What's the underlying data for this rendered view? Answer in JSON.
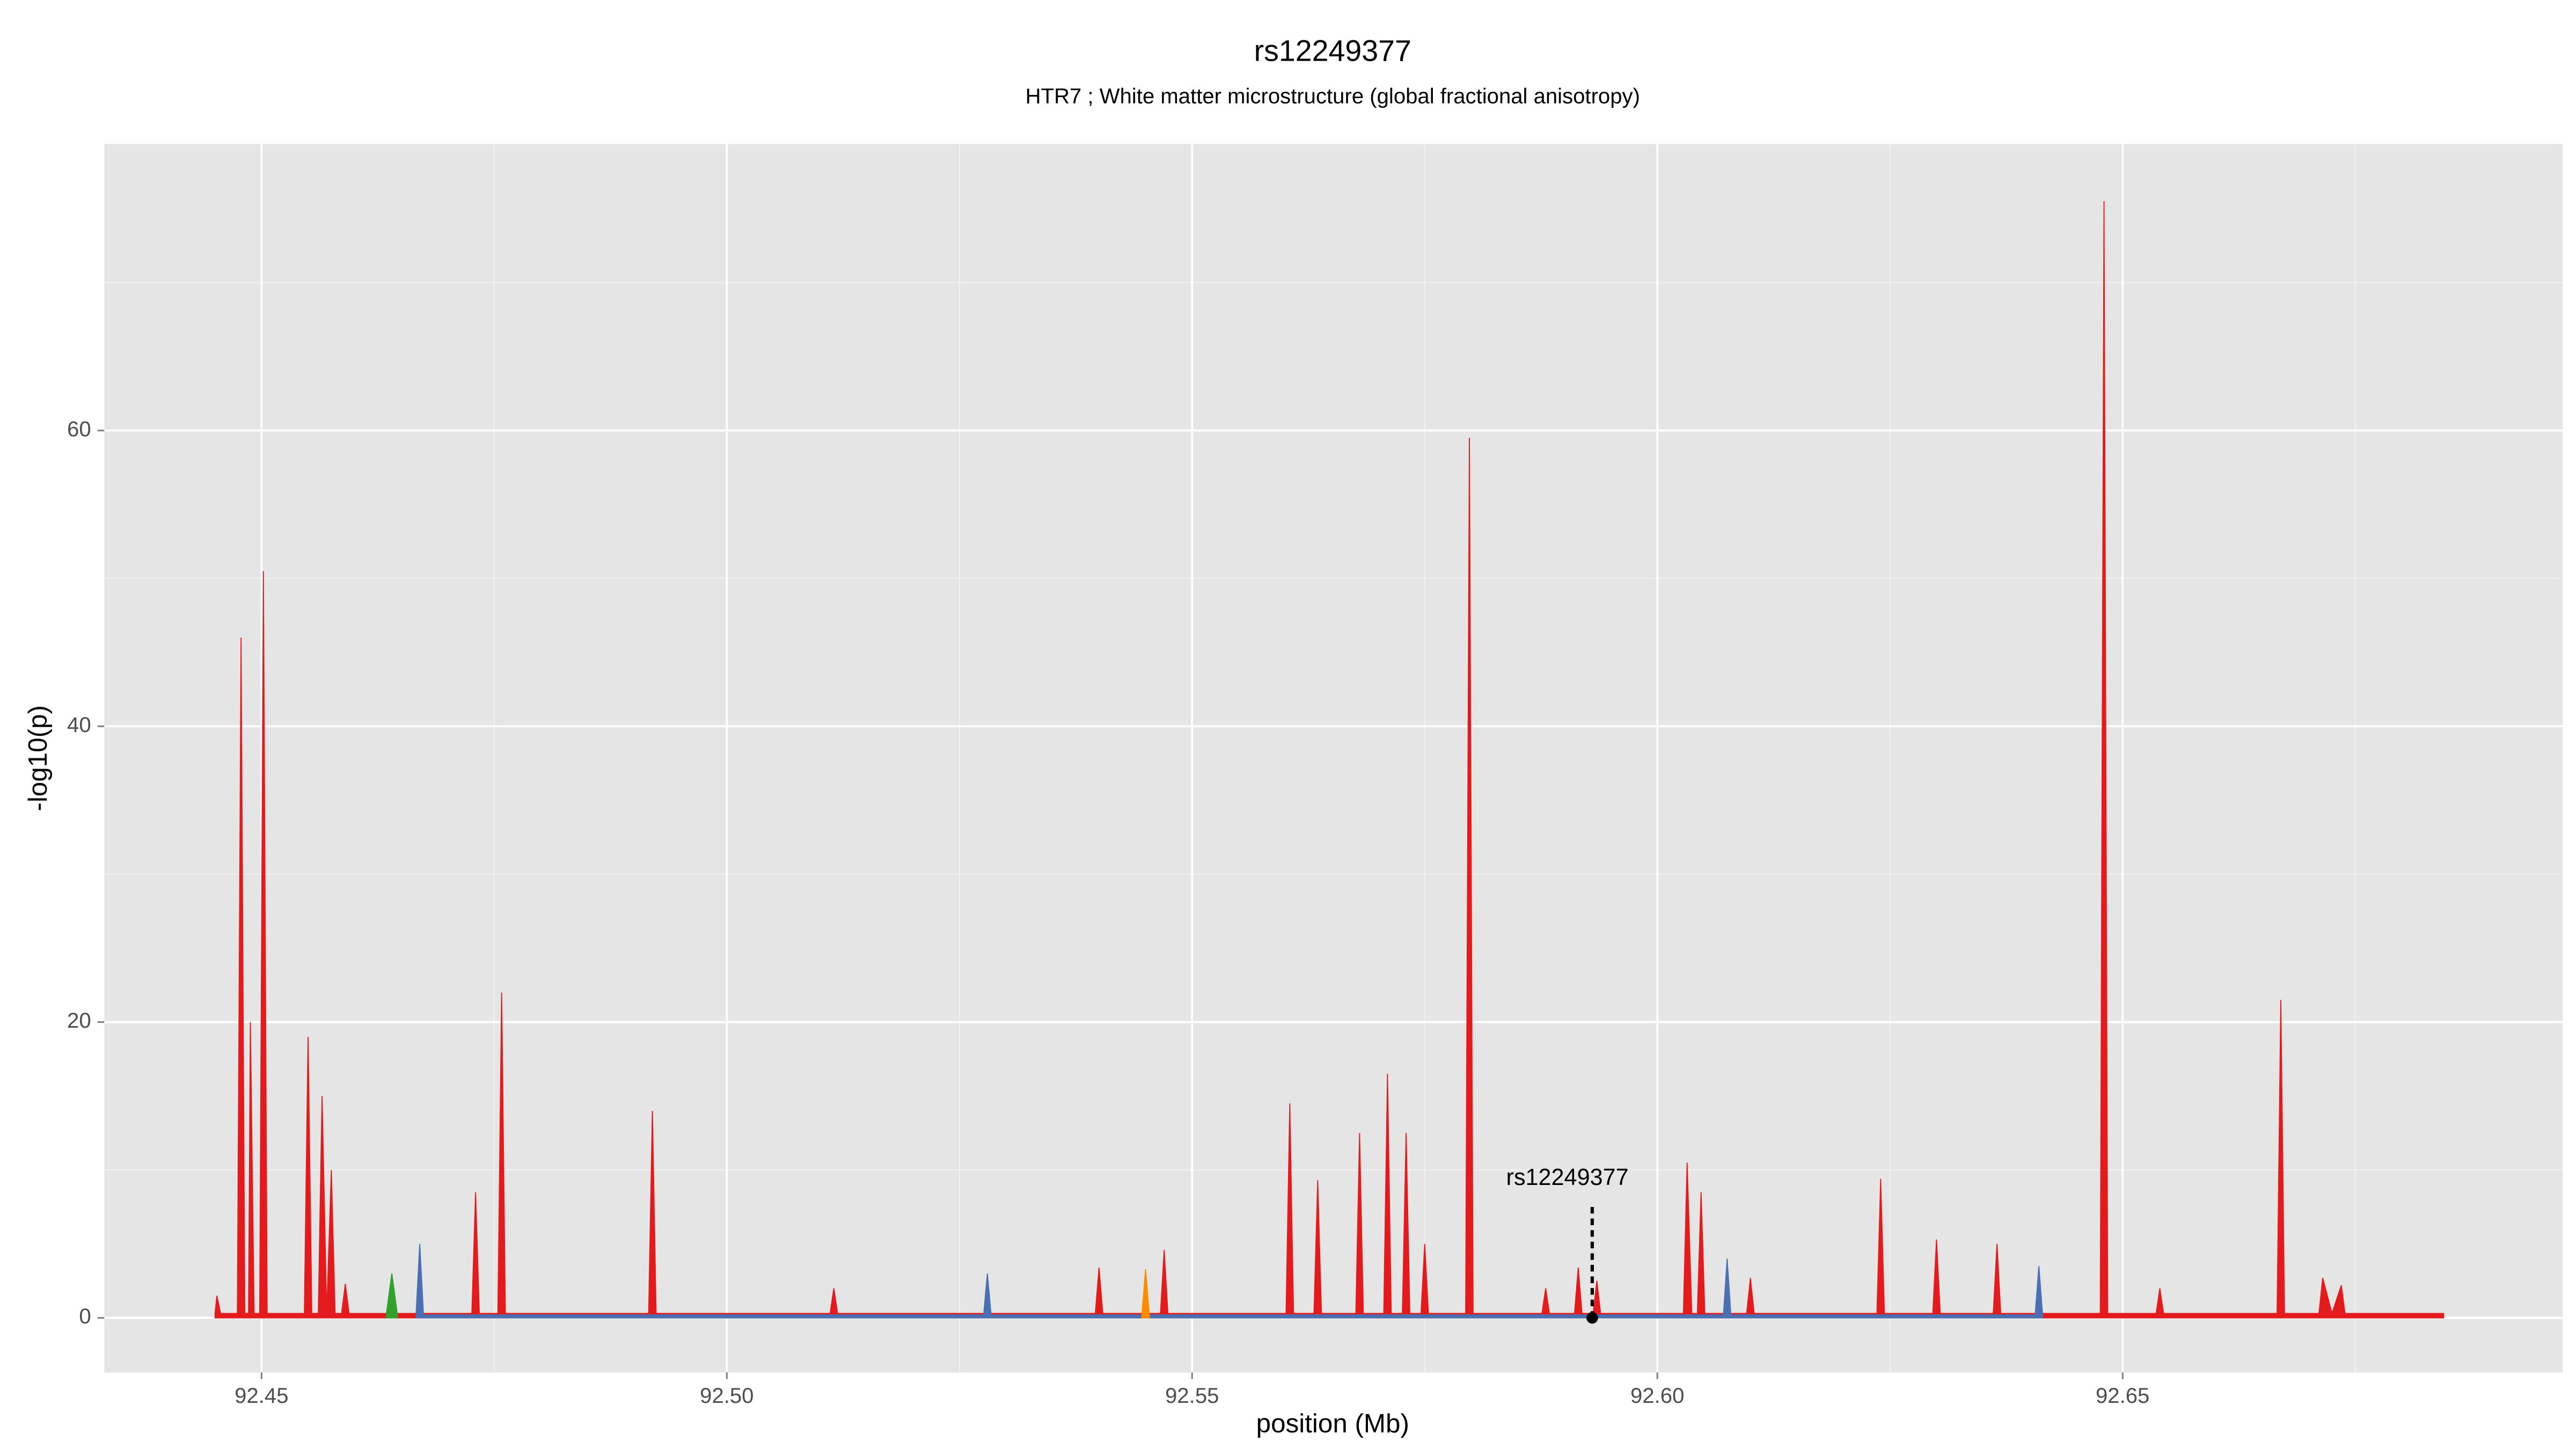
{
  "chart_data": {
    "type": "area",
    "title": "rs12249377",
    "subtitle": "HTR7 ; White matter microstructure (global fractional anisotropy)",
    "x_label": "position (Mb)",
    "y_label": "-log10(p)",
    "xlim": [
      92.4331,
      92.6973
    ],
    "ylim": [
      -3.69,
      79.37
    ],
    "xticks": [
      92.45,
      {
        "value": 92.5,
        "label": "92.50"
      },
      92.55,
      {
        "value": 92.6,
        "label": "92.60"
      },
      92.65
    ],
    "yticks": [
      0,
      20,
      40,
      60
    ],
    "grid": true,
    "annotation": {
      "text": "rs12249377",
      "x": 92.593
    },
    "series": [
      {
        "name": "red",
        "color": "#e41a1c",
        "x": [
          92.445,
          92.4452,
          92.4456,
          92.4474,
          92.4478,
          92.4482,
          92.4486,
          92.4488,
          92.4492,
          92.4498,
          92.4502,
          92.4506,
          92.4546,
          92.455,
          92.4554,
          92.4561,
          92.4565,
          92.457,
          92.4575,
          92.4579,
          92.4586,
          92.459,
          92.4594,
          92.4726,
          92.473,
          92.4734,
          92.4754,
          92.4758,
          92.4762,
          92.4916,
          92.492,
          92.4924,
          92.5111,
          92.5115,
          92.5119,
          92.5396,
          92.54,
          92.5404,
          92.5466,
          92.547,
          92.5474,
          92.5601,
          92.5605,
          92.5609,
          92.5631,
          92.5635,
          92.5639,
          92.5676,
          92.568,
          92.5684,
          92.5706,
          92.571,
          92.5714,
          92.5726,
          92.573,
          92.5734,
          92.5746,
          92.575,
          92.5754,
          92.5794,
          92.5798,
          92.5802,
          92.5876,
          92.588,
          92.5884,
          92.5911,
          92.5915,
          92.5919,
          92.5931,
          92.5935,
          92.5939,
          92.6028,
          92.6032,
          92.6037,
          92.6043,
          92.6047,
          92.6051,
          92.6096,
          92.61,
          92.6104,
          92.6236,
          92.624,
          92.6244,
          92.6296,
          92.63,
          92.6304,
          92.6361,
          92.6365,
          92.6369,
          92.6476,
          92.648,
          92.6484,
          92.6536,
          92.654,
          92.6544,
          92.6666,
          92.667,
          92.6674,
          92.6711,
          92.6715,
          92.6725,
          92.6735,
          92.6739,
          92.6845
        ],
        "values": [
          0.3,
          1.5,
          0.3,
          0.3,
          46,
          0.3,
          0.3,
          20,
          0.3,
          0.3,
          50.5,
          0.3,
          0.3,
          19,
          0.3,
          0.3,
          15,
          0.3,
          10,
          0.3,
          0.3,
          2.3,
          0.3,
          0.3,
          8.5,
          0.3,
          0.3,
          22,
          0.3,
          0.3,
          14,
          0.3,
          0.3,
          2,
          0.3,
          0.3,
          3.4,
          0.3,
          0.3,
          4.6,
          0.3,
          0.3,
          14.5,
          0.3,
          0.3,
          9.3,
          0.3,
          0.3,
          12.5,
          0.3,
          0.3,
          16.5,
          0.3,
          0.3,
          12.5,
          0.3,
          0.3,
          5,
          0.3,
          0.3,
          59.5,
          0.3,
          0.3,
          2,
          0.3,
          0.3,
          3.4,
          0.3,
          0.3,
          2.5,
          0.3,
          0.3,
          10.5,
          0.3,
          0.3,
          8.5,
          0.3,
          0.3,
          2.7,
          0.3,
          0.3,
          9.4,
          0.3,
          0.3,
          5.3,
          0.3,
          0.3,
          5,
          0.3,
          0.3,
          75.5,
          0.3,
          0.3,
          2,
          0.3,
          0.3,
          21.5,
          0.3,
          0.3,
          2.7,
          0.3,
          2.2,
          0.3,
          0.3
        ]
      },
      {
        "name": "green",
        "color": "#33a02c",
        "x": [
          92.4634,
          92.464,
          92.4646
        ],
        "values": [
          0.2,
          3,
          0.2
        ]
      },
      {
        "name": "blue",
        "color": "#4a6fb3",
        "x": [
          92.4666,
          92.467,
          92.4674,
          92.5276,
          92.528,
          92.5284,
          92.6071,
          92.6075,
          92.6079,
          92.6406,
          92.641,
          92.6414
        ],
        "values": [
          0.2,
          5,
          0.2,
          0.2,
          3,
          0.2,
          0.2,
          4,
          0.2,
          0.2,
          3.5,
          0.2
        ]
      },
      {
        "name": "orange",
        "color": "#ff8c00",
        "x": [
          92.5446,
          92.545,
          92.5454
        ],
        "values": [
          0.2,
          3.3,
          0.2
        ]
      }
    ]
  }
}
